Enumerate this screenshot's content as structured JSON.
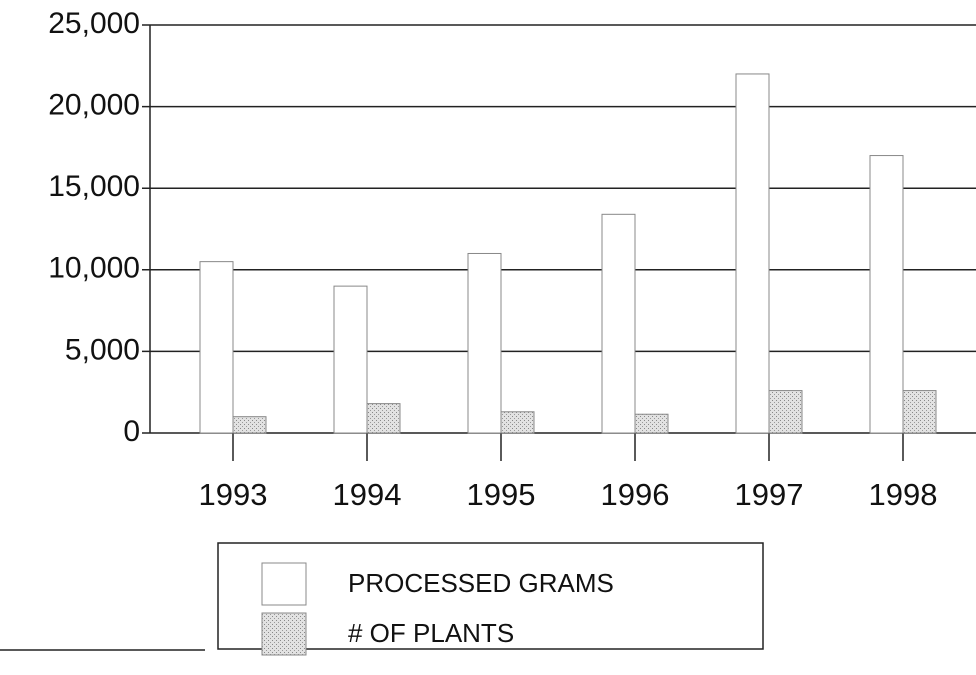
{
  "chart_data": {
    "type": "bar",
    "categories": [
      "1993",
      "1994",
      "1995",
      "1996",
      "1997",
      "1998"
    ],
    "series": [
      {
        "name": "PROCESSED GRAMS",
        "color": "#ffffff",
        "values": [
          10500,
          9000,
          11000,
          13400,
          22000,
          17000
        ]
      },
      {
        "name": "# OF PLANTS",
        "color": "#d4d4d4",
        "values": [
          1000,
          1800,
          1300,
          1150,
          2600,
          2600
        ]
      }
    ],
    "ylim": [
      0,
      25000
    ],
    "yticks": [
      0,
      {
        "value": 5000,
        "label": "5,000"
      },
      {
        "value": 10000,
        "label": "10,000"
      },
      {
        "value": 15000,
        "label": "15,000"
      },
      {
        "value": 20000,
        "label": "20,000"
      },
      {
        "value": 25000,
        "label": "25,000"
      }
    ],
    "grid": true,
    "legend": "bottom"
  }
}
